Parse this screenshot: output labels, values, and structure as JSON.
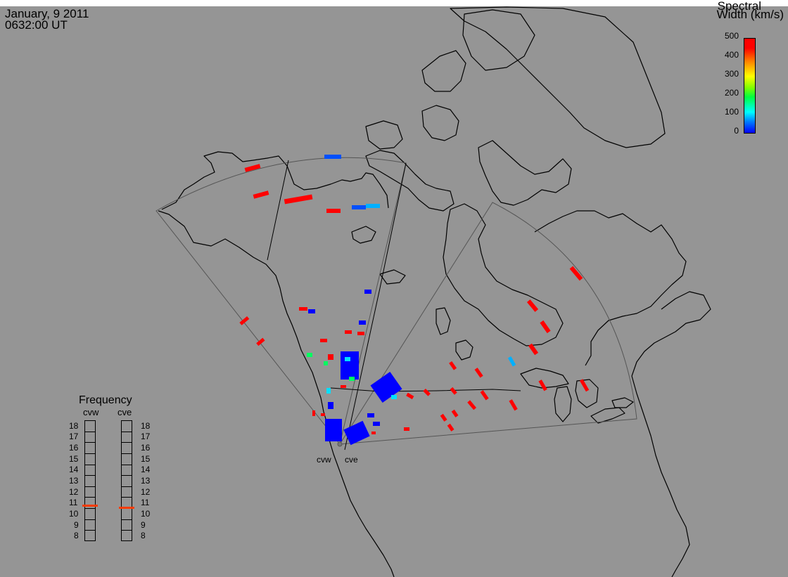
{
  "timestamp": {
    "date": "January, 9 2011",
    "time": "0632:00 UT"
  },
  "colorbar": {
    "title_line1": "Spectral",
    "title_line2": "Width (km/s)",
    "ticks": [
      "500",
      "400",
      "300",
      "200",
      "100",
      "0"
    ],
    "colors": [
      "#0000ff",
      "#0080ff",
      "#00ffff",
      "#00ff40",
      "#80ff00",
      "#ffff00",
      "#ff8000",
      "#ff0000"
    ]
  },
  "frequency_panel": {
    "title": "Frequency",
    "radars": [
      {
        "label": "cvw",
        "value_mhz": 10.8
      },
      {
        "label": "cve",
        "value_mhz": 10.6
      }
    ],
    "ticks": [
      "18",
      "17",
      "16",
      "15",
      "14",
      "13",
      "12",
      "11",
      "10",
      "9",
      "8"
    ],
    "marker_color": "#ff3c00"
  },
  "radar_sites": [
    {
      "label": "cvw"
    },
    {
      "label": "cve"
    }
  ],
  "map": {
    "background_color": "#959595",
    "coast_color": "#000000",
    "fov_color": "#555555",
    "site_color": "#777777"
  }
}
